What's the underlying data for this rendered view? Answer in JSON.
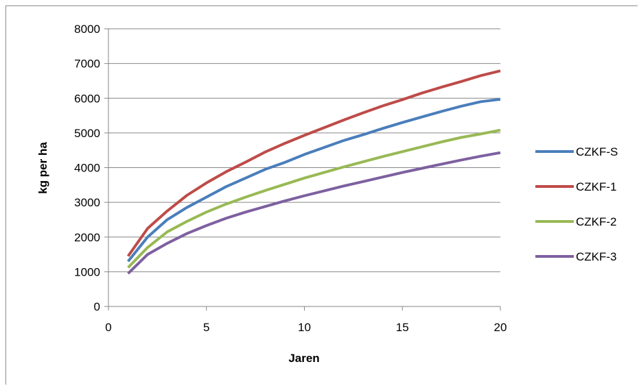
{
  "chart_data": {
    "type": "line",
    "xlabel": "Jaren",
    "ylabel": "kg per ha",
    "xlim": [
      0,
      20
    ],
    "ylim": [
      0,
      8000
    ],
    "xticks": [
      0,
      5,
      10,
      15,
      20
    ],
    "yticks": [
      0,
      1000,
      2000,
      3000,
      4000,
      5000,
      6000,
      7000,
      8000
    ],
    "grid": "horizontal",
    "legend_position": "right",
    "x": [
      1,
      2,
      3,
      4,
      5,
      6,
      7,
      8,
      9,
      10,
      11,
      12,
      13,
      14,
      15,
      16,
      17,
      18,
      19,
      20
    ],
    "series": [
      {
        "name": "CZKF-S",
        "color": "#4a7ebb",
        "values": [
          1300,
          2000,
          2500,
          2850,
          3150,
          3450,
          3700,
          3950,
          4150,
          4380,
          4580,
          4780,
          4950,
          5130,
          5300,
          5460,
          5620,
          5770,
          5900,
          5970
        ]
      },
      {
        "name": "CZKF-1",
        "color": "#be4b48",
        "values": [
          1450,
          2250,
          2750,
          3200,
          3560,
          3880,
          4160,
          4450,
          4700,
          4930,
          5150,
          5370,
          5580,
          5780,
          5960,
          6150,
          6320,
          6480,
          6650,
          6790
        ]
      },
      {
        "name": "CZKF-2",
        "color": "#98b954",
        "values": [
          1120,
          1700,
          2150,
          2450,
          2720,
          2950,
          3150,
          3340,
          3520,
          3700,
          3860,
          4020,
          4170,
          4320,
          4460,
          4600,
          4740,
          4870,
          4970,
          5080
        ]
      },
      {
        "name": "CZKF-3",
        "color": "#7d60a0",
        "values": [
          950,
          1500,
          1820,
          2100,
          2330,
          2540,
          2720,
          2880,
          3040,
          3190,
          3330,
          3470,
          3600,
          3730,
          3860,
          3980,
          4100,
          4220,
          4330,
          4430
        ]
      }
    ]
  }
}
